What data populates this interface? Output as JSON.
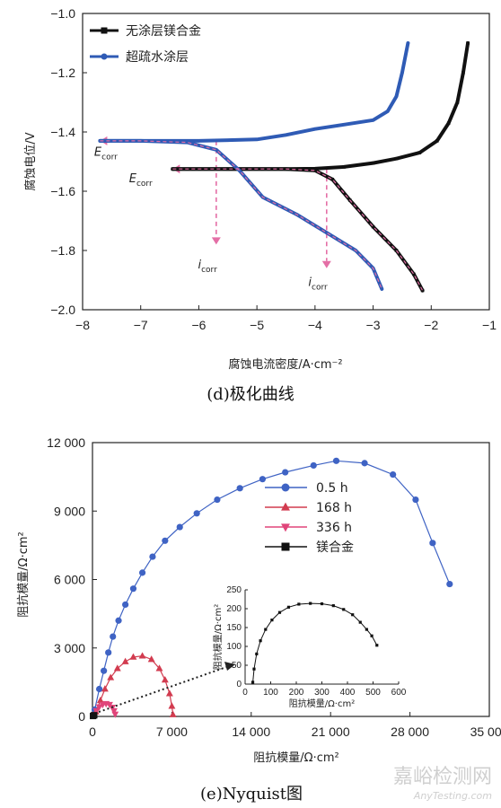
{
  "chart_data": [
    {
      "type": "line",
      "caption": "(d)极化曲线",
      "xlabel": "腐蚀电流密度/A·cm⁻²",
      "ylabel": "腐蚀电位/V",
      "xlim": [
        -8,
        -1
      ],
      "ylim": [
        -2.0,
        -1.0
      ],
      "xticks": [
        "−8",
        "−7",
        "−6",
        "−5",
        "−4",
        "−3",
        "−2",
        "−1"
      ],
      "yticks": [
        "−1.0",
        "−1.2",
        "−1.4",
        "−1.6",
        "−1.8",
        "−2.0"
      ],
      "legend_position": "top-left",
      "series": [
        {
          "name": "无涂层镁合金",
          "color": "#111111",
          "marker": "square",
          "points": [
            [
              -6.45,
              -1.525
            ],
            [
              -5.5,
              -1.525
            ],
            [
              -4.5,
              -1.525
            ],
            [
              -4.0,
              -1.524
            ],
            [
              -3.5,
              -1.518
            ],
            [
              -3.0,
              -1.505
            ],
            [
              -2.6,
              -1.49
            ],
            [
              -2.2,
              -1.47
            ],
            [
              -1.9,
              -1.43
            ],
            [
              -1.7,
              -1.37
            ],
            [
              -1.55,
              -1.3
            ],
            [
              -1.45,
              -1.2
            ],
            [
              -1.37,
              -1.1
            ]
          ]
        },
        {
          "name": "",
          "color": "#111111",
          "marker": "square",
          "points": [
            [
              -6.45,
              -1.525
            ],
            [
              -5.5,
              -1.525
            ],
            [
              -4.5,
              -1.525
            ],
            [
              -4.0,
              -1.53
            ],
            [
              -3.7,
              -1.56
            ],
            [
              -3.4,
              -1.63
            ],
            [
              -3.0,
              -1.72
            ],
            [
              -2.6,
              -1.8
            ],
            [
              -2.3,
              -1.88
            ],
            [
              -2.15,
              -1.935
            ]
          ]
        },
        {
          "name": "超疏水涂层",
          "color": "#2f5bb5",
          "marker": "circle",
          "points": [
            [
              -7.7,
              -1.43
            ],
            [
              -7.0,
              -1.43
            ],
            [
              -6.0,
              -1.43
            ],
            [
              -5.0,
              -1.425
            ],
            [
              -4.5,
              -1.41
            ],
            [
              -4.0,
              -1.39
            ],
            [
              -3.5,
              -1.375
            ],
            [
              -3.0,
              -1.36
            ],
            [
              -2.75,
              -1.33
            ],
            [
              -2.6,
              -1.28
            ],
            [
              -2.5,
              -1.2
            ],
            [
              -2.4,
              -1.1
            ]
          ]
        },
        {
          "name": "",
          "color": "#2f5bb5",
          "marker": "circle",
          "points": [
            [
              -7.7,
              -1.43
            ],
            [
              -7.0,
              -1.43
            ],
            [
              -6.2,
              -1.435
            ],
            [
              -5.7,
              -1.46
            ],
            [
              -5.3,
              -1.53
            ],
            [
              -4.9,
              -1.62
            ],
            [
              -4.3,
              -1.68
            ],
            [
              -3.8,
              -1.74
            ],
            [
              -3.3,
              -1.8
            ],
            [
              -3.0,
              -1.86
            ],
            [
              -2.85,
              -1.93
            ]
          ]
        }
      ],
      "annotations": [
        {
          "kind": "E_corr",
          "sym": "E",
          "sub": "corr",
          "x": -7.6,
          "y": -1.48
        },
        {
          "kind": "E_corr",
          "sym": "E",
          "sub": "corr",
          "x": -7.0,
          "y": -1.57
        },
        {
          "kind": "i_corr",
          "sym": "i",
          "sub": "corr",
          "x": -5.85,
          "y": -1.86
        },
        {
          "kind": "i_corr",
          "sym": "i",
          "sub": "corr",
          "x": -3.95,
          "y": -1.92
        }
      ],
      "guides": [
        {
          "kind": "h-arrow",
          "from": [
            -5.7,
            -1.43
          ],
          "to": [
            -7.7,
            -1.43
          ]
        },
        {
          "kind": "h-arrow",
          "from": [
            -3.8,
            -1.525
          ],
          "to": [
            -6.45,
            -1.525
          ]
        },
        {
          "kind": "v-arrow",
          "from": [
            -5.7,
            -1.43
          ],
          "to": [
            -5.7,
            -1.78
          ]
        },
        {
          "kind": "v-arrow",
          "from": [
            -3.8,
            -1.525
          ],
          "to": [
            -3.8,
            -1.86
          ]
        }
      ],
      "guide_color": "#e46fa6"
    },
    {
      "type": "scatter",
      "caption": "(e)Nyquist图",
      "xlabel": "阻抗模量/Ω·cm²",
      "ylabel": "阻抗模量/Ω·cm²",
      "xlim": [
        0,
        35000
      ],
      "ylim": [
        0,
        12000
      ],
      "xticks": [
        "0",
        "7 000",
        "14 000",
        "21 000",
        "28 000",
        "35 000"
      ],
      "yticks": [
        "0",
        "3 000",
        "6 000",
        "9 000",
        "12 000"
      ],
      "legend_position": "center-right",
      "series": [
        {
          "name": "0.5 h",
          "color": "#3f63c4",
          "marker": "circle",
          "points": [
            [
              200,
              300
            ],
            [
              600,
              1200
            ],
            [
              1000,
              2000
            ],
            [
              1400,
              2800
            ],
            [
              1800,
              3500
            ],
            [
              2300,
              4200
            ],
            [
              2900,
              4900
            ],
            [
              3600,
              5600
            ],
            [
              4400,
              6300
            ],
            [
              5300,
              7000
            ],
            [
              6400,
              7700
            ],
            [
              7700,
              8300
            ],
            [
              9200,
              8900
            ],
            [
              11000,
              9500
            ],
            [
              13000,
              10000
            ],
            [
              15000,
              10400
            ],
            [
              17000,
              10700
            ],
            [
              19500,
              11000
            ],
            [
              21500,
              11200
            ],
            [
              24000,
              11100
            ],
            [
              26500,
              10600
            ],
            [
              28500,
              9500
            ],
            [
              30000,
              7600
            ],
            [
              31500,
              5800
            ]
          ]
        },
        {
          "name": "168 h",
          "color": "#d23b4f",
          "marker": "triangle-up",
          "points": [
            [
              300,
              200
            ],
            [
              700,
              700
            ],
            [
              1100,
              1200
            ],
            [
              1600,
              1700
            ],
            [
              2200,
              2100
            ],
            [
              2900,
              2400
            ],
            [
              3600,
              2600
            ],
            [
              4400,
              2650
            ],
            [
              5200,
              2500
            ],
            [
              5900,
              2100
            ],
            [
              6400,
              1600
            ],
            [
              6800,
              1000
            ],
            [
              7000,
              450
            ],
            [
              7100,
              80
            ]
          ]
        },
        {
          "name": "336 h",
          "color": "#e0457a",
          "marker": "triangle-down",
          "points": [
            [
              150,
              80
            ],
            [
              350,
              250
            ],
            [
              600,
              420
            ],
            [
              900,
              520
            ],
            [
              1200,
              560
            ],
            [
              1500,
              520
            ],
            [
              1750,
              400
            ],
            [
              1900,
              250
            ],
            [
              2000,
              100
            ]
          ]
        },
        {
          "name": "镁合金",
          "color": "#111111",
          "marker": "square",
          "points": [
            [
              50,
              20
            ],
            [
              150,
              50
            ]
          ]
        }
      ],
      "dotted_arrow_color": "#222222",
      "inset": {
        "xlim": [
          0,
          600
        ],
        "ylim": [
          0,
          250
        ],
        "xticks": [
          "0",
          "100",
          "200",
          "300",
          "400",
          "500",
          "600"
        ],
        "yticks": [
          "0",
          "50",
          "100",
          "150",
          "200",
          "250"
        ],
        "xlabel": "阻抗模量/Ω·cm²",
        "ylabel": "阻抗模量/Ω·cm²",
        "color": "#111111",
        "points": [
          [
            30,
            5
          ],
          [
            35,
            40
          ],
          [
            45,
            80
          ],
          [
            60,
            115
          ],
          [
            80,
            145
          ],
          [
            105,
            170
          ],
          [
            135,
            190
          ],
          [
            170,
            204
          ],
          [
            210,
            212
          ],
          [
            255,
            214
          ],
          [
            300,
            213
          ],
          [
            345,
            208
          ],
          [
            385,
            198
          ],
          [
            420,
            184
          ],
          [
            450,
            164
          ],
          [
            475,
            145
          ],
          [
            495,
            128
          ],
          [
            515,
            103
          ]
        ]
      }
    }
  ],
  "watermark": {
    "text_cn": "嘉峪检测网",
    "text_en": "AnyTesting.com"
  }
}
